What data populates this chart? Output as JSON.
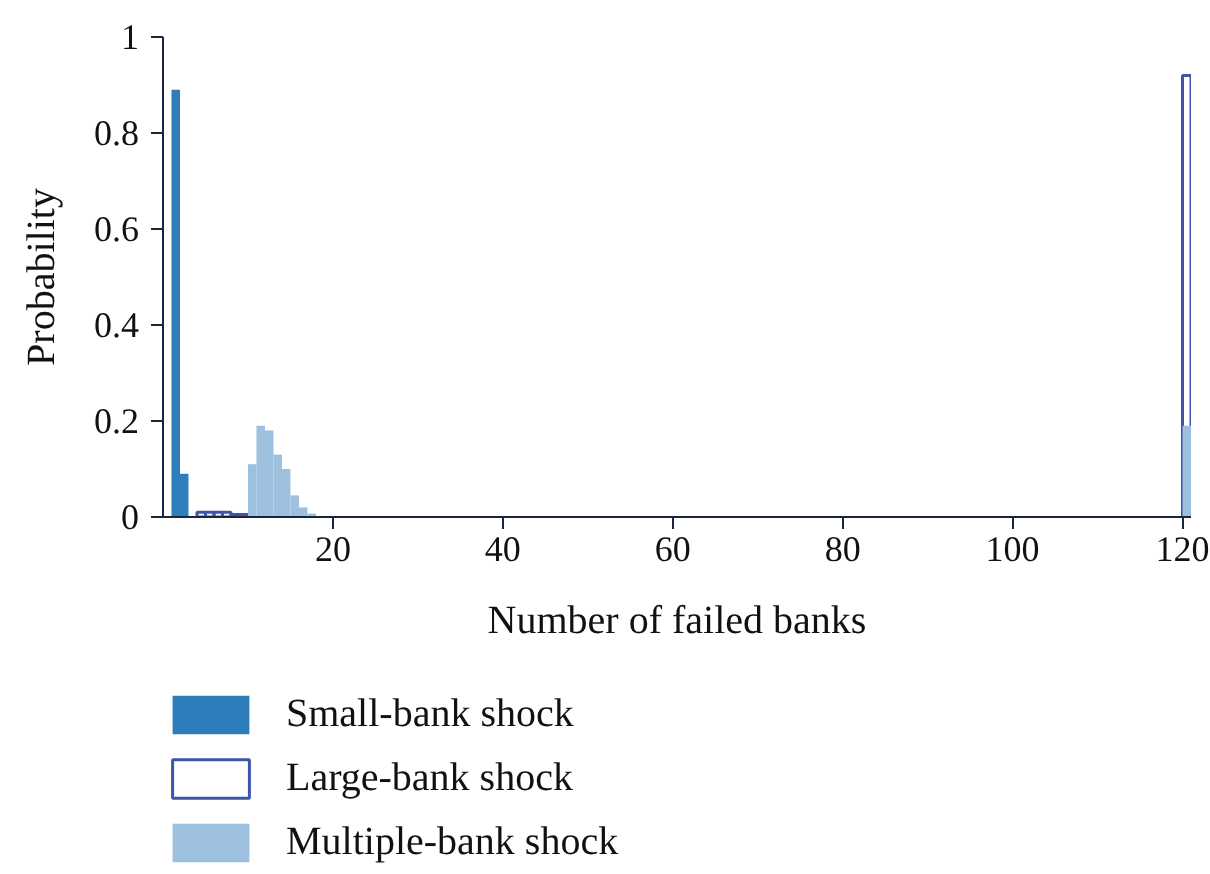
{
  "chart_data": {
    "type": "bar",
    "xlabel": "Number of failed banks",
    "ylabel": "Probability",
    "xlim": [
      0,
      121
    ],
    "xticks": [
      20,
      40,
      60,
      80,
      100,
      120
    ],
    "ylim": [
      0,
      1
    ],
    "yticks": [
      0,
      0.2,
      0.4,
      0.6,
      0.8,
      1
    ],
    "legend": "bottom left",
    "series": [
      {
        "name": "Small-bank shock",
        "color": "#2e7ebc",
        "x": [
          1.5,
          2.5
        ],
        "values": [
          0.89,
          0.09
        ]
      },
      {
        "name": "Large-bank shock",
        "color": "#3d55ab",
        "line_style": "solid",
        "x": [
          4.5,
          5.5,
          6.5,
          7.5,
          8.5,
          9.5,
          120.5
        ],
        "values": [
          0.01,
          0.01,
          0.01,
          0.01,
          0.005,
          0.005,
          0.92
        ]
      },
      {
        "name": "Multiple-bank shock",
        "color": "#9dc0df",
        "x": [
          10.5,
          11.5,
          12.5,
          13.5,
          14.5,
          15.5,
          16.5,
          17.5,
          120.5
        ],
        "values": [
          0.11,
          0.19,
          0.18,
          0.13,
          0.1,
          0.045,
          0.02,
          0.007,
          0.19
        ]
      }
    ]
  }
}
